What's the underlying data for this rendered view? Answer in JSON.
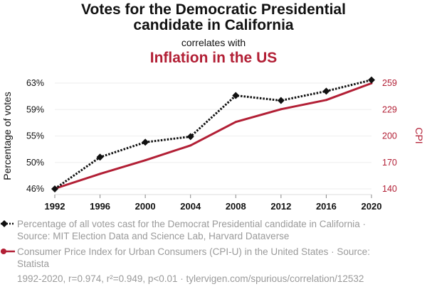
{
  "header": {
    "title_line1": "Votes for the Democratic Presidential",
    "title_line2": "candidate in California",
    "subtitle": "correlates with",
    "title2": "Inflation in the US"
  },
  "legend": {
    "series1": "Percentage of all votes cast for the Democrat Presidential candidate in California · Source: MIT Election Data and Science Lab, Harvard Dataverse",
    "series2": "Consumer Price Index for Urban Consumers (CPI-U) in the United States · Source: Statista"
  },
  "footer": "1992-2020, r=0.974, r²=0.949, p<0.01 · tylervigen.com/spurious/correlation/12532",
  "chart_data": {
    "type": "line",
    "x": [
      1992,
      1996,
      2000,
      2004,
      2008,
      2012,
      2016,
      2020
    ],
    "x_ticks": [
      "1992",
      "1996",
      "2000",
      "2004",
      "2008",
      "2012",
      "2016",
      "2020"
    ],
    "ylabel_left": "Percentage of votes",
    "ylabel_right": "CPI",
    "left_ticks": [
      "46%",
      "50%",
      "55%",
      "59%",
      "63%"
    ],
    "right_ticks": [
      "140",
      "170",
      "200",
      "229",
      "259"
    ],
    "ylim_left": [
      46,
      63
    ],
    "ylim_right": [
      140,
      259
    ],
    "series": [
      {
        "values": [
          46.0,
          51.1,
          53.5,
          54.4,
          61.0,
          60.2,
          61.7,
          63.5
        ],
        "axis": "left",
        "color": "#111111",
        "style": "dotted",
        "marker": "diamond"
      },
      {
        "values": [
          140.3,
          156.9,
          172.2,
          188.9,
          215.3,
          229.6,
          240.0,
          258.8
        ],
        "axis": "right",
        "color": "#b21f35",
        "style": "solid",
        "marker": "none"
      }
    ],
    "grid": true
  },
  "colors": {
    "accent": "#b21f35",
    "text": "#111111",
    "muted": "#9a9a9a",
    "grid": "#eeeeee"
  }
}
